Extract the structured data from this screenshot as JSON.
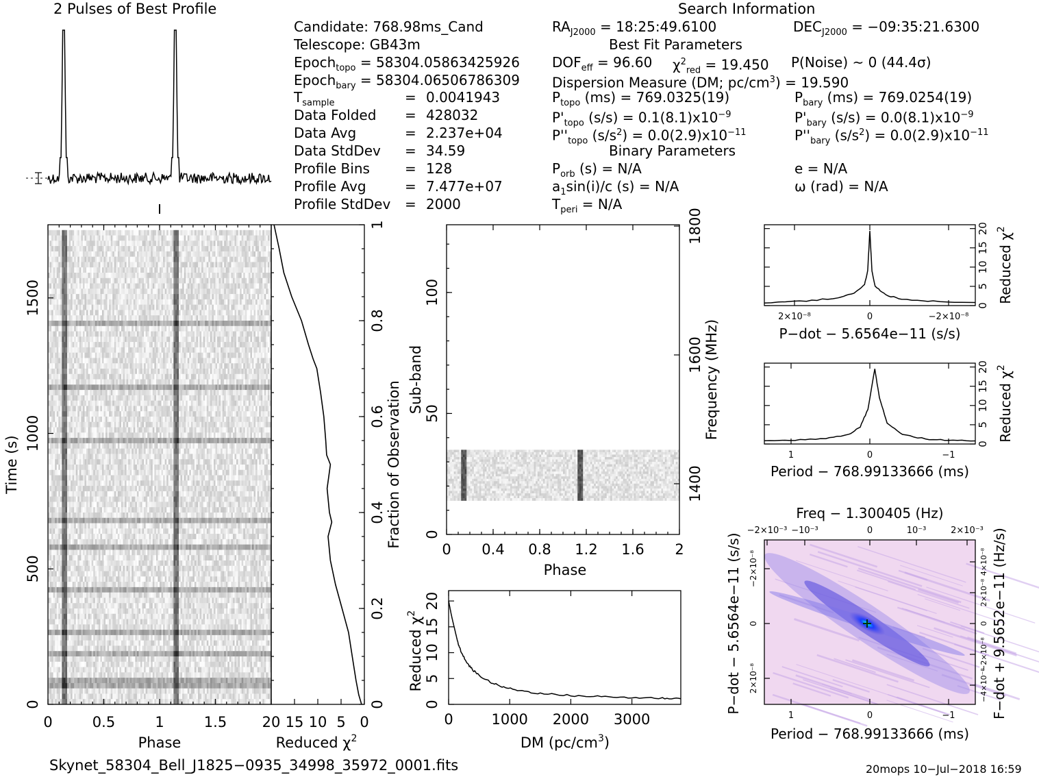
{
  "profile_title": "2 Pulses of Best Profile",
  "search_title": "Search Information",
  "info": {
    "candidate": "Candidate:  768.98ms_Cand",
    "telescope": "Telescope:  GB43m",
    "epoch_topo": "Epoch",
    "epoch_topo_sub": "topo",
    "epoch_topo_val": " = 58304.05863425926",
    "epoch_bary": "Epoch",
    "epoch_bary_sub": "bary",
    "epoch_bary_val": " = 58304.06506786309",
    "rows": [
      {
        "label": "T",
        "sub": "sample",
        "eq": "=",
        "val": "0.0041943"
      },
      {
        "label": "Data Folded",
        "sub": "",
        "eq": "=",
        "val": "428032"
      },
      {
        "label": "Data Avg",
        "sub": "",
        "eq": "=",
        "val": "2.237e+04"
      },
      {
        "label": "Data StdDev",
        "sub": "",
        "eq": "=",
        "val": "34.59"
      },
      {
        "label": "Profile Bins",
        "sub": "",
        "eq": "=",
        "val": "128"
      },
      {
        "label": "Profile Avg",
        "sub": "",
        "eq": "=",
        "val": "7.477e+07"
      },
      {
        "label": "Profile StdDev",
        "sub": "",
        "eq": "=",
        "val": "2000"
      }
    ]
  },
  "search": {
    "ra_label": "RA",
    "ra_sub": "J2000",
    "ra_val": " = 18:25:49.6100",
    "dec_label": "DEC",
    "dec_sub": "J2000",
    "dec_val": " = −09:35:21.6300",
    "best_fit": "Best Fit Parameters",
    "dof": "DOF",
    "dof_sub": "eff",
    "dof_val": " = 96.60",
    "chi_label": "χ",
    "chi_sup": "2",
    "chi_sub": "red",
    "chi_val": " = 19.450",
    "pnoise": "P(Noise) ~ 0   (44.4σ)",
    "dm_line": "Dispersion Measure (DM; pc/cm",
    "dm_sup": "3",
    "dm_val": ") = 19.590",
    "ptopo": "P",
    "ptopo_sub": "topo",
    "ptopo_val": " (ms) =  769.0325(19)",
    "pbary": "P",
    "pbary_sub": "bary",
    "pbary_val": " (ms) =  769.0254(19)",
    "pdtopo": "P'",
    "pdtopo_sub": "topo",
    "pdtopo_val": " (s/s) =  0.1(8.1)x10",
    "pdtopo_exp": "−9",
    "pdbary": "P'",
    "pdbary_sub": "bary",
    "pdbary_val": " (s/s) = 0.0(8.1)x10",
    "pdbary_exp": "−9",
    "pddtopo": "P''",
    "pddtopo_sub": "topo",
    "pddtopo_val": " (s/s",
    "pddtopo_sup": "2",
    "pddtopo_val2": ") = 0.0(2.9)x10",
    "pddtopo_exp": "−11",
    "pddbary": "P''",
    "pddbary_sub": "bary",
    "pddbary_val": " (s/s",
    "pddbary_sup": "2",
    "pddbary_val2": ") = 0.0(2.9)x10",
    "pddbary_exp": "−11",
    "binary": "Binary Parameters",
    "porb": "P",
    "porb_sub": "orb",
    "porb_val": " (s) = N/A",
    "ecc": "e = N/A",
    "a1": "a",
    "a1_sub": "1",
    "a1_val": "sin(i)/c (s) = N/A",
    "omega": "ω (rad) = N/A",
    "tperi": "T",
    "tperi_sub": "peri",
    "tperi_val": " = N/A"
  },
  "footer": {
    "filename": "Skynet_58304_Bell_J1825−0935_34998_35972_0001.fits",
    "stamp": "20mops  10−Jul−2018  16:59"
  },
  "colors": {
    "ink": "#000000",
    "ppdot_bg": "#f0d8f0",
    "ppdot_mid": "#6a5ce0",
    "ppdot_core": "#00e0f0"
  },
  "chart_data": [
    {
      "type": "line",
      "name": "profile",
      "title": "2 Pulses of Best Profile",
      "x": "phase 0-2",
      "peaks_phase": [
        0.14,
        1.14
      ]
    },
    {
      "type": "heatmap",
      "name": "time-phase",
      "xlabel": "Phase",
      "ylabel": "Time (s)",
      "xticks": [
        "0",
        "0.5",
        "1",
        "1.5"
      ],
      "yticks": [
        "0",
        "500",
        "1000",
        "1500"
      ],
      "xlim": [
        0,
        2
      ],
      "ylim": [
        0,
        1770
      ]
    },
    {
      "type": "line",
      "name": "reduced-chi2-vs-time",
      "xlabel": "Reduced χ",
      "xlabel_sup": "2",
      "ylabel": "Fraction of Observation",
      "xticks": [
        "20",
        "15",
        "10",
        "5",
        "0"
      ],
      "yticks": [
        "0",
        "0.2",
        "0.4",
        "0.6",
        "0.8",
        "1"
      ],
      "frac": [
        0,
        0.02,
        0.05,
        0.1,
        0.15,
        0.2,
        0.25,
        0.3,
        0.35,
        0.38,
        0.4,
        0.45,
        0.5,
        0.52,
        0.55,
        0.6,
        0.65,
        0.7,
        0.72,
        0.75,
        0.8,
        0.85,
        0.9,
        0.95,
        1.0
      ],
      "chi": [
        0.6,
        1.2,
        1.8,
        2.6,
        3.4,
        4.8,
        6.2,
        7.3,
        7.8,
        7.0,
        7.5,
        8.0,
        7.3,
        8.1,
        8.3,
        8.7,
        9.4,
        10.2,
        11.0,
        12.0,
        13.5,
        15.6,
        17.3,
        18.3,
        19.4
      ]
    },
    {
      "type": "heatmap",
      "name": "subband-phase",
      "xlabel": "Phase",
      "ylabel": "Sub-band",
      "y2label": "Frequency (MHz)",
      "xticks": [
        "0",
        "0.4",
        "0.8",
        "1.2",
        "1.6",
        "2"
      ],
      "yticks": [
        "0",
        "50",
        "100"
      ],
      "y2ticks": [
        "1400",
        "1600",
        "1800"
      ],
      "xlim": [
        0,
        2
      ],
      "ylim": [
        0,
        128
      ],
      "band_range": [
        14,
        35
      ]
    },
    {
      "type": "line",
      "name": "chi2-vs-dm",
      "xlabel": "DM (pc/cm",
      "xlabel_sup": "3",
      "xlabel_end": ")",
      "ylabel": "Reduced χ",
      "ylabel_sup": "2",
      "xticks": [
        "0",
        "1000",
        "2000",
        "3000"
      ],
      "yticks": [
        "0",
        "5",
        "10",
        "15",
        "20"
      ],
      "xlim": [
        0,
        3800
      ],
      "ylim": [
        0,
        22
      ],
      "x": [
        0,
        50,
        100,
        150,
        200,
        300,
        400,
        500,
        700,
        900,
        1200,
        1500,
        2000,
        2500,
        3000,
        3500,
        3800
      ],
      "y": [
        20,
        17,
        14.5,
        12,
        10.3,
        8,
        6.6,
        5.6,
        4.2,
        3.3,
        2.6,
        2.1,
        1.7,
        1.5,
        1.3,
        1.2,
        1.1
      ]
    },
    {
      "type": "line",
      "name": "chi2-vs-pdot",
      "xlabel": "P−dot − 5.6564e−11 (s/s)",
      "ylabel": "Reduced χ",
      "ylabel_sup": "2",
      "xticks": [
        "2×10⁻⁸",
        "0",
        "−2×10⁻⁸"
      ],
      "yticks": [
        "0",
        "5",
        "10",
        "15",
        "20"
      ],
      "ylim": [
        0,
        21
      ],
      "x": [
        -1,
        -0.6,
        -0.3,
        -0.15,
        -0.05,
        -0.02,
        0,
        0.02,
        0.05,
        0.15,
        0.3,
        0.6,
        1
      ],
      "y": [
        0.8,
        1.2,
        2.0,
        3.2,
        5.5,
        9.0,
        19.5,
        9.0,
        5.0,
        2.8,
        1.6,
        1.1,
        0.8
      ]
    },
    {
      "type": "line",
      "name": "chi2-vs-period",
      "xlabel": "Period − 768.99133666 (ms)",
      "ylabel": "Reduced χ",
      "ylabel_sup": "2",
      "xticks": [
        "1",
        "0",
        "−1"
      ],
      "yticks": [
        "0",
        "5",
        "10",
        "15",
        "20"
      ],
      "ylim": [
        0,
        21
      ],
      "x": [
        1.4,
        1.0,
        0.6,
        0.3,
        0.15,
        0.05,
        -0.04,
        -0.1,
        -0.2,
        -0.4,
        -0.7,
        -1.0,
        -1.35
      ],
      "y": [
        0.8,
        1.0,
        1.5,
        2.5,
        4.5,
        9.0,
        19.5,
        12.0,
        5.5,
        2.5,
        1.3,
        0.9,
        0.8
      ]
    },
    {
      "type": "heatmap",
      "name": "period-pdot",
      "title": "Freq − 1.300405 (Hz)",
      "xlabel": "Period − 768.99133666 (ms)",
      "ylabel": "P−dot − 5.6564e−11 (s/s)",
      "y2label": "F−dot + 9.5652e−11 (Hz/s)",
      "xticks": [
        "1",
        "0",
        "−1"
      ],
      "x2ticks": [
        "−2×10⁻³",
        "−10⁻³",
        "0",
        "10⁻³",
        "2×10⁻³"
      ],
      "yticks": [
        "−2×10⁻⁸",
        "0",
        "2×10⁻⁸"
      ],
      "y2ticks": [
        "4×10⁻⁸",
        "2×10⁻⁸",
        "0",
        "−2×10⁻⁸",
        "−4×10⁻⁸"
      ]
    }
  ]
}
